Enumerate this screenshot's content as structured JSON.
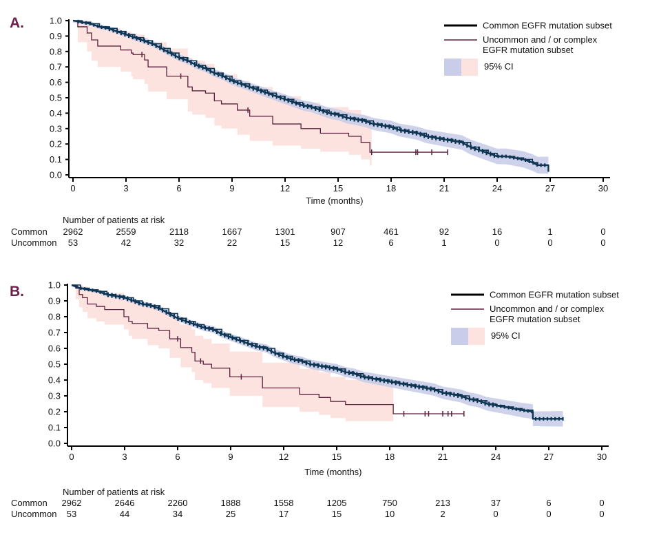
{
  "colors": {
    "common": "#0d3552",
    "uncommon": "#5a1f3c",
    "common_ci": "#c9cde9",
    "uncommon_ci": "#fce3df",
    "panel_label": "#6b1f4a"
  },
  "chart_data": [
    {
      "type": "line",
      "panel_label": "A.",
      "title": "",
      "xlabel": "Time (months)",
      "ylabel": "",
      "xlim": [
        0,
        30
      ],
      "ylim": [
        0,
        1
      ],
      "x_ticks": [
        0,
        3,
        6,
        9,
        12,
        15,
        18,
        21,
        24,
        27,
        30
      ],
      "y_ticks": [
        "0.0",
        "0.1",
        "0.2",
        "0.3",
        "0.4",
        "0.5",
        "0.6",
        "0.7",
        "0.8",
        "0.9",
        "1.0"
      ],
      "grid": false,
      "legend_position": "top-right",
      "legend": {
        "common": "Common EGFR mutation subset",
        "uncommon_line1": "Uncommon and / or complex",
        "uncommon_line2": "EGFR mutation subset",
        "ci": "95% CI"
      },
      "series": [
        {
          "name": "Common EGFR mutation subset",
          "step": true,
          "x": [
            0,
            0.5,
            1,
            1.5,
            2,
            2.5,
            3,
            3.5,
            4,
            4.5,
            5,
            5.5,
            6,
            6.5,
            7,
            7.5,
            8,
            8.5,
            9,
            9.5,
            10,
            10.5,
            11,
            11.5,
            12,
            12.5,
            13,
            13.5,
            14,
            14.5,
            15,
            15.5,
            16,
            16.5,
            17,
            17.5,
            18,
            18.5,
            19,
            19.5,
            20,
            20.5,
            21,
            21.5,
            22,
            22.5,
            23,
            23.5,
            24,
            24.5,
            25,
            25.5,
            26,
            26.3,
            26.9,
            26.9
          ],
          "y": [
            1.0,
            0.99,
            0.98,
            0.96,
            0.95,
            0.93,
            0.91,
            0.89,
            0.87,
            0.85,
            0.82,
            0.79,
            0.76,
            0.74,
            0.71,
            0.69,
            0.66,
            0.64,
            0.61,
            0.59,
            0.57,
            0.55,
            0.53,
            0.51,
            0.49,
            0.47,
            0.45,
            0.44,
            0.42,
            0.4,
            0.39,
            0.37,
            0.36,
            0.35,
            0.33,
            0.32,
            0.31,
            0.29,
            0.28,
            0.27,
            0.25,
            0.24,
            0.23,
            0.22,
            0.21,
            0.18,
            0.16,
            0.14,
            0.12,
            0.12,
            0.11,
            0.1,
            0.08,
            0.063,
            0.063,
            0.02
          ],
          "ci_halfwidth": 0.012,
          "ci_growth": 0.0016
        },
        {
          "name": "Uncommon and / or complex EGFR mutation subset",
          "step": true,
          "x": [
            0,
            0.27,
            0.8,
            1.05,
            1.4,
            2.7,
            3.3,
            3.4,
            4.05,
            4.25,
            5.3,
            6.5,
            6.75,
            7.5,
            8.0,
            8.4,
            9.3,
            10.0,
            11.3,
            12.9,
            14.0,
            15.6,
            16.3,
            16.8,
            21.2
          ],
          "y": [
            1.0,
            0.96,
            0.92,
            0.875,
            0.835,
            0.81,
            0.79,
            0.78,
            0.745,
            0.7,
            0.64,
            0.57,
            0.545,
            0.53,
            0.48,
            0.46,
            0.42,
            0.38,
            0.33,
            0.3,
            0.27,
            0.25,
            0.21,
            0.147,
            0.147
          ],
          "ci_lower": [
            1.0,
            0.86,
            0.8,
            0.74,
            0.7,
            0.67,
            0.64,
            0.62,
            0.59,
            0.54,
            0.49,
            0.41,
            0.39,
            0.37,
            0.32,
            0.3,
            0.26,
            0.22,
            0.19,
            0.17,
            0.15,
            0.13,
            0.1,
            0.06,
            0.06
          ],
          "ci_upper": [
            1.0,
            1.0,
            1.0,
            0.97,
            0.95,
            0.93,
            0.92,
            0.91,
            0.89,
            0.86,
            0.82,
            0.76,
            0.74,
            0.72,
            0.67,
            0.65,
            0.61,
            0.57,
            0.51,
            0.47,
            0.44,
            0.42,
            0.38,
            0.32,
            0.32
          ],
          "ci_end": 16.9,
          "censor_x": [
            3.9,
            6.1,
            9.9,
            16.9,
            19.4,
            19.5,
            20.3,
            21.2
          ]
        }
      ],
      "risk_table": {
        "title": "Number of patients at risk",
        "times": [
          0,
          3,
          6,
          9,
          12,
          15,
          18,
          21,
          24,
          27,
          30
        ],
        "rows": [
          {
            "label": "Common",
            "values": [
              "2962",
              "2559",
              "2118",
              "1667",
              "1301",
              "907",
              "461",
              "92",
              "16",
              "1",
              "0"
            ]
          },
          {
            "label": "Uncommon",
            "values": [
              "53",
              "42",
              "32",
              "22",
              "15",
              "12",
              "6",
              "1",
              "0",
              "0",
              "0"
            ]
          }
        ]
      }
    },
    {
      "type": "line",
      "panel_label": "B.",
      "title": "",
      "xlabel": "Time (months)",
      "ylabel": "",
      "xlim": [
        0,
        30
      ],
      "ylim": [
        0,
        1
      ],
      "x_ticks": [
        0,
        3,
        6,
        9,
        12,
        15,
        18,
        21,
        24,
        27,
        30
      ],
      "y_ticks": [
        "0.0",
        "0.1",
        "0.2",
        "0.3",
        "0.4",
        "0.5",
        "0.6",
        "0.7",
        "0.8",
        "0.9",
        "1.0"
      ],
      "grid": false,
      "legend_position": "top-right",
      "legend": {
        "common": "Common EGFR mutation subset",
        "uncommon_line1": "Uncommon and / or complex",
        "uncommon_line2": "EGFR mutation subset",
        "ci": "95% CI"
      },
      "series": [
        {
          "name": "Common EGFR mutation subset",
          "step": true,
          "x": [
            0,
            0.5,
            1,
            1.5,
            2,
            2.5,
            3,
            3.5,
            4,
            4.5,
            5,
            5.5,
            6,
            6.5,
            7,
            7.5,
            8,
            8.5,
            9,
            9.5,
            10,
            10.5,
            11,
            11.5,
            12,
            12.5,
            13,
            13.5,
            14,
            14.5,
            15,
            15.5,
            16,
            16.5,
            17,
            17.5,
            18,
            18.5,
            19,
            19.5,
            20,
            20.5,
            21,
            21.5,
            22,
            22.5,
            23,
            23.5,
            24,
            24.5,
            25,
            25.5,
            26.1,
            26.1,
            27.8
          ],
          "y": [
            1.0,
            0.98,
            0.97,
            0.96,
            0.94,
            0.93,
            0.92,
            0.9,
            0.88,
            0.87,
            0.85,
            0.82,
            0.79,
            0.77,
            0.75,
            0.73,
            0.72,
            0.69,
            0.67,
            0.65,
            0.63,
            0.61,
            0.6,
            0.57,
            0.55,
            0.53,
            0.52,
            0.5,
            0.49,
            0.48,
            0.47,
            0.45,
            0.44,
            0.42,
            0.41,
            0.4,
            0.39,
            0.38,
            0.37,
            0.36,
            0.35,
            0.34,
            0.32,
            0.31,
            0.3,
            0.28,
            0.27,
            0.25,
            0.24,
            0.23,
            0.22,
            0.21,
            0.2,
            0.155,
            0.155
          ],
          "ci_halfwidth": 0.01,
          "ci_growth": 0.0014
        },
        {
          "name": "Uncommon and / or complex EGFR mutation subset",
          "step": true,
          "x": [
            0,
            0.23,
            0.43,
            0.62,
            0.9,
            1.4,
            1.87,
            2.96,
            3.23,
            3.43,
            4.3,
            4.93,
            5.55,
            6.17,
            6.8,
            6.98,
            7.45,
            7.92,
            8.95,
            10.8,
            12.9,
            14.0,
            14.65,
            15.5,
            18.2,
            22.2
          ],
          "y": [
            1.0,
            0.98,
            0.94,
            0.92,
            0.88,
            0.865,
            0.845,
            0.8,
            0.77,
            0.757,
            0.727,
            0.713,
            0.66,
            0.605,
            0.575,
            0.52,
            0.5,
            0.475,
            0.42,
            0.35,
            0.31,
            0.29,
            0.265,
            0.245,
            0.187,
            0.187
          ],
          "ci_lower": [
            1.0,
            0.91,
            0.86,
            0.83,
            0.79,
            0.77,
            0.75,
            0.72,
            0.68,
            0.66,
            0.62,
            0.6,
            0.54,
            0.48,
            0.45,
            0.4,
            0.38,
            0.35,
            0.3,
            0.23,
            0.2,
            0.18,
            0.16,
            0.14,
            0.11,
            0.11
          ],
          "ci_upper": [
            1.0,
            1.0,
            1.0,
            0.99,
            0.97,
            0.96,
            0.95,
            0.93,
            0.9,
            0.89,
            0.86,
            0.85,
            0.8,
            0.75,
            0.72,
            0.68,
            0.66,
            0.63,
            0.58,
            0.51,
            0.47,
            0.45,
            0.42,
            0.4,
            0.36,
            0.36
          ],
          "ci_end": 18.2,
          "censor_x": [
            6.0,
            7.3,
            9.6,
            18.8,
            20.0,
            20.2,
            21.0,
            21.3,
            21.5,
            22.2
          ]
        }
      ],
      "risk_table": {
        "title": "Number of patients at risk",
        "times": [
          0,
          3,
          6,
          9,
          12,
          15,
          18,
          21,
          24,
          27,
          30
        ],
        "rows": [
          {
            "label": "Common",
            "values": [
              "2962",
              "2646",
              "2260",
              "1888",
              "1558",
              "1205",
              "750",
              "213",
              "37",
              "6",
              "0"
            ]
          },
          {
            "label": "Uncommon",
            "values": [
              "53",
              "44",
              "34",
              "25",
              "17",
              "15",
              "10",
              "2",
              "0",
              "0",
              "0"
            ]
          }
        ]
      }
    }
  ]
}
